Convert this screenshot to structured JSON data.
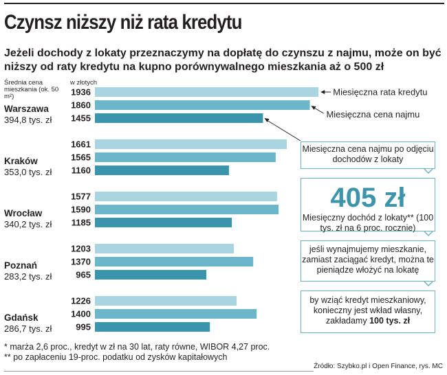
{
  "title": "Czynsz niższy niż rata kredytu",
  "subtitle": "Jeżeli dochody z lokaty przeznaczymy na dopłatę do czynszu z najmu, może on być niższy od raty kredytu na kupno porównywalnego mieszkania aż o 500 zł",
  "column_labels": {
    "left": "Średnia cena mieszkania (ok. 50 m²)",
    "right": "w złotych"
  },
  "colors": {
    "rate": "#a9d5e0",
    "rent": "#6cb6c9",
    "rent_net": "#3a94ab",
    "box_border": "#6db2c4"
  },
  "chart_data": {
    "type": "bar",
    "orientation": "horizontal",
    "categories": [
      "Warszawa",
      "Kraków",
      "Wrocław",
      "Poznań",
      "Gdańsk"
    ],
    "category_values": [
      "394,8 tys. zł",
      "353,0 tys. zł",
      "340,2 tys. zł",
      "283,2 tys. zł",
      "286,7 tys. zł"
    ],
    "series": [
      {
        "name": "Miesięczna rata kredytu",
        "values": [
          1936,
          1661,
          1577,
          1203,
          1226
        ]
      },
      {
        "name": "Miesięczna cena najmu",
        "values": [
          1860,
          1565,
          1590,
          1370,
          1400
        ]
      },
      {
        "name": "Miesięczna cena najmu po odjęciu dochodów z lokaty",
        "values": [
          1455,
          1160,
          1185,
          965,
          995
        ]
      }
    ],
    "unit": "w złotych",
    "xlim": [
      0,
      2000
    ]
  },
  "legend": {
    "rate": "Miesięczna rata kredytu",
    "rent": "Miesięczna cena najmu"
  },
  "boxes": {
    "net_rent": "Miesięczna cena najmu po odjęciu dochodów z lokaty",
    "income_value": "405 zł",
    "income_label": "Miesięczny dochód z lokaty** (100 tys. zł na 6 proc. rocznie)",
    "invest_note": "jeśli wynajmujemy mieszkanie, zamiast zaciągać kredyt, można te pieniądze włożyć na lokatę",
    "loan_note_prefix": "by wziąć kredyt mieszkaniowy, konieczny jest wkład własny, zakładamy",
    "loan_note_amount": "100 tys. zł"
  },
  "footnotes": [
    "* marża 2,6 proc., kredyt w zł na 30 lat, raty równe, WIBOR 4,27 proc.",
    "** po zapłaceniu 19-proc. podatku od zysków kapitałowych"
  ],
  "source": "Źródło: Szybko.pl i Open Finance, rys. MC"
}
